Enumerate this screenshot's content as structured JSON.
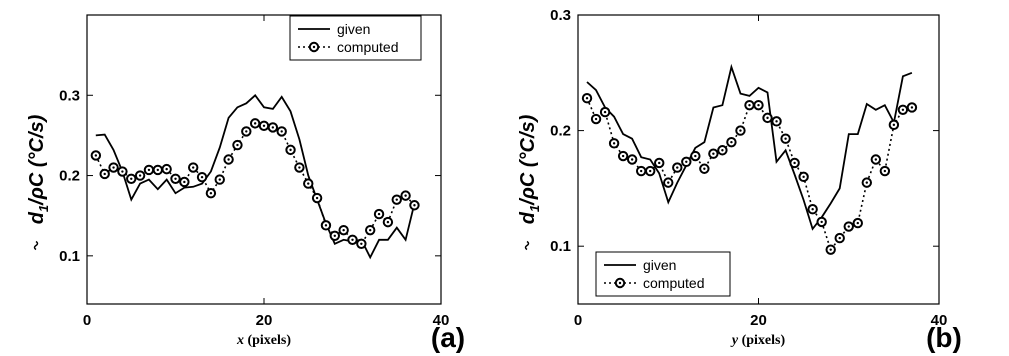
{
  "chart_data": [
    {
      "type": "line",
      "panel_label": "(a)",
      "xlabel_var": "x",
      "xlabel_unit": " (pixels)",
      "ylabel": "d̃1 /ρC (°C/s)",
      "ylabel_main": "d",
      "ylabel_sub": "1",
      "ylabel_rest": "/ρC (°C/s)",
      "xlim": [
        0,
        40
      ],
      "ylim": [
        0.04,
        0.4
      ],
      "xticks": [
        "0",
        "20",
        "40"
      ],
      "yticks": [
        "0.1",
        "0.2",
        "0.3"
      ],
      "grid": false,
      "legend_position": "top-right",
      "series": [
        {
          "name": "given",
          "style": "solid",
          "x": [
            1,
            2,
            3,
            4,
            5,
            6,
            7,
            8,
            9,
            10,
            11,
            12,
            13,
            14,
            15,
            16,
            17,
            18,
            19,
            20,
            21,
            22,
            23,
            24,
            25,
            26,
            27,
            28,
            29,
            30,
            31,
            32,
            33,
            34,
            35,
            36,
            37
          ],
          "y": [
            0.25,
            0.251,
            0.232,
            0.205,
            0.17,
            0.19,
            0.195,
            0.183,
            0.195,
            0.178,
            0.185,
            0.186,
            0.19,
            0.205,
            0.235,
            0.272,
            0.285,
            0.29,
            0.3,
            0.285,
            0.283,
            0.298,
            0.28,
            0.245,
            0.2,
            0.17,
            0.14,
            0.115,
            0.12,
            0.118,
            0.12,
            0.098,
            0.12,
            0.12,
            0.135,
            0.12,
            0.165
          ]
        },
        {
          "name": "computed",
          "style": "dotted-circle",
          "x": [
            1,
            2,
            3,
            4,
            5,
            6,
            7,
            8,
            9,
            10,
            11,
            12,
            13,
            14,
            15,
            16,
            17,
            18,
            19,
            20,
            21,
            22,
            23,
            24,
            25,
            26,
            27,
            28,
            29,
            30,
            31,
            32,
            33,
            34,
            35,
            36,
            37
          ],
          "y": [
            0.225,
            0.202,
            0.21,
            0.205,
            0.196,
            0.2,
            0.207,
            0.207,
            0.208,
            0.196,
            0.192,
            0.21,
            0.198,
            0.178,
            0.195,
            0.22,
            0.238,
            0.255,
            0.265,
            0.262,
            0.26,
            0.255,
            0.232,
            0.21,
            0.19,
            0.172,
            0.138,
            0.125,
            0.132,
            0.12,
            0.115,
            0.132,
            0.152,
            0.142,
            0.17,
            0.175,
            0.163
          ]
        }
      ]
    },
    {
      "type": "line",
      "panel_label": "(b)",
      "xlabel_var": "y",
      "xlabel_unit": " (pixels)",
      "ylabel": "d̃1 /ρC (°C/s)",
      "ylabel_main": "d",
      "ylabel_sub": "1",
      "ylabel_rest": "/ρC (°C/s)",
      "xlim": [
        0,
        40
      ],
      "ylim": [
        0.05,
        0.3
      ],
      "xticks": [
        "0",
        "20",
        "40"
      ],
      "yticks": [
        "0.1",
        "0.2",
        "0.3"
      ],
      "grid": false,
      "legend_position": "bottom-left",
      "series": [
        {
          "name": "given",
          "style": "solid",
          "x": [
            1,
            2,
            3,
            4,
            5,
            6,
            7,
            8,
            9,
            10,
            11,
            12,
            13,
            14,
            15,
            16,
            17,
            18,
            19,
            20,
            21,
            22,
            23,
            24,
            25,
            26,
            27,
            28,
            29,
            30,
            31,
            32,
            33,
            34,
            35,
            36,
            37
          ],
          "y": [
            0.242,
            0.235,
            0.22,
            0.212,
            0.197,
            0.193,
            0.177,
            0.175,
            0.163,
            0.138,
            0.155,
            0.17,
            0.185,
            0.19,
            0.22,
            0.222,
            0.255,
            0.232,
            0.23,
            0.237,
            0.233,
            0.173,
            0.183,
            0.162,
            0.14,
            0.115,
            0.125,
            0.137,
            0.15,
            0.197,
            0.197,
            0.223,
            0.218,
            0.222,
            0.207,
            0.247,
            0.25
          ]
        },
        {
          "name": "computed",
          "style": "dotted-circle",
          "x": [
            1,
            2,
            3,
            4,
            5,
            6,
            7,
            8,
            9,
            10,
            11,
            12,
            13,
            14,
            15,
            16,
            17,
            18,
            19,
            20,
            21,
            22,
            23,
            24,
            25,
            26,
            27,
            28,
            29,
            30,
            31,
            32,
            33,
            34,
            35,
            36,
            37
          ],
          "y": [
            0.228,
            0.21,
            0.216,
            0.189,
            0.178,
            0.175,
            0.165,
            0.165,
            0.172,
            0.155,
            0.168,
            0.173,
            0.178,
            0.167,
            0.18,
            0.183,
            0.19,
            0.2,
            0.222,
            0.222,
            0.211,
            0.208,
            0.193,
            0.172,
            0.16,
            0.132,
            0.121,
            0.097,
            0.107,
            0.117,
            0.12,
            0.155,
            0.175,
            0.165,
            0.205,
            0.218,
            0.22
          ]
        }
      ]
    }
  ]
}
